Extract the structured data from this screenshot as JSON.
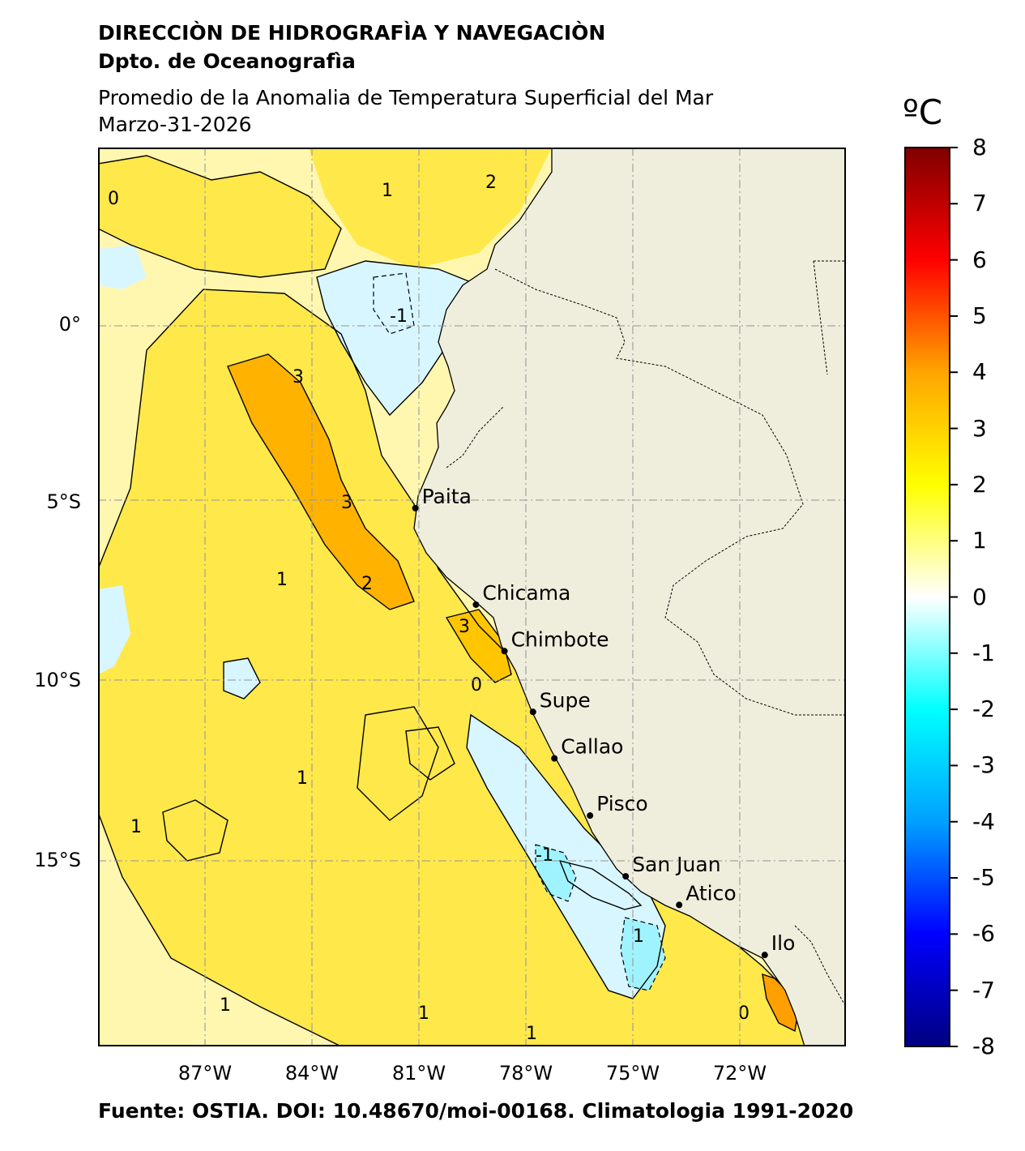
{
  "header": {
    "institution": "DIRECCIÒN DE HIDROGRAFÌA Y NAVEGACIÒN",
    "department": "Dpto. de Oceanografìa"
  },
  "title": {
    "line1": "Promedio de la Anomalia de Temperatura Superficial del Mar",
    "line2": "Marzo-31-2026"
  },
  "colorbar": {
    "unit": "ºC",
    "min": -8,
    "max": 8,
    "ticks": [
      "8",
      "7",
      "6",
      "5",
      "4",
      "3",
      "2",
      "1",
      "0",
      "-1",
      "-2",
      "-3",
      "-4",
      "-5",
      "-6",
      "-7",
      "-8"
    ],
    "colors": [
      "#000080",
      "#0000ff",
      "#00a0ff",
      "#00ffff",
      "#ffffff",
      "#ffff00",
      "#ffa500",
      "#ff0000",
      "#800000"
    ]
  },
  "axes": {
    "lat_labels": [
      "0°",
      "5°S",
      "10°S",
      "15°S"
    ],
    "lon_labels": [
      "87°W",
      "84°W",
      "81°W",
      "78°W",
      "75°W",
      "72°W"
    ]
  },
  "cities": [
    {
      "name": "Paita",
      "lon": -81.1,
      "lat": -5.1
    },
    {
      "name": "Chicama",
      "lon": -79.4,
      "lat": -7.8
    },
    {
      "name": "Chimbote",
      "lon": -78.6,
      "lat": -9.1
    },
    {
      "name": "Supe",
      "lon": -77.8,
      "lat": -10.8
    },
    {
      "name": "Callao",
      "lon": -77.2,
      "lat": -12.1
    },
    {
      "name": "Pisco",
      "lon": -76.2,
      "lat": -13.7
    },
    {
      "name": "San Juan",
      "lon": -75.2,
      "lat": -15.4
    },
    {
      "name": "Atico",
      "lon": -73.7,
      "lat": -16.2
    },
    {
      "name": "Ilo",
      "lon": -71.3,
      "lat": -17.6
    }
  ],
  "contour_labels": [
    "0",
    "1",
    "2",
    "3",
    "-1"
  ],
  "colors": {
    "land": "#efeedd",
    "ocean_warm": "#ffe84a",
    "ocean_mild": "#fff7b0",
    "ocean_hot": "#ffb300",
    "ocean_cool": "#d8f6ff",
    "ocean_cold": "#8ff0ff"
  },
  "source": "Fuente: OSTIA. DOI: 10.48670/moi-00168. Climatologia 1991-2020"
}
